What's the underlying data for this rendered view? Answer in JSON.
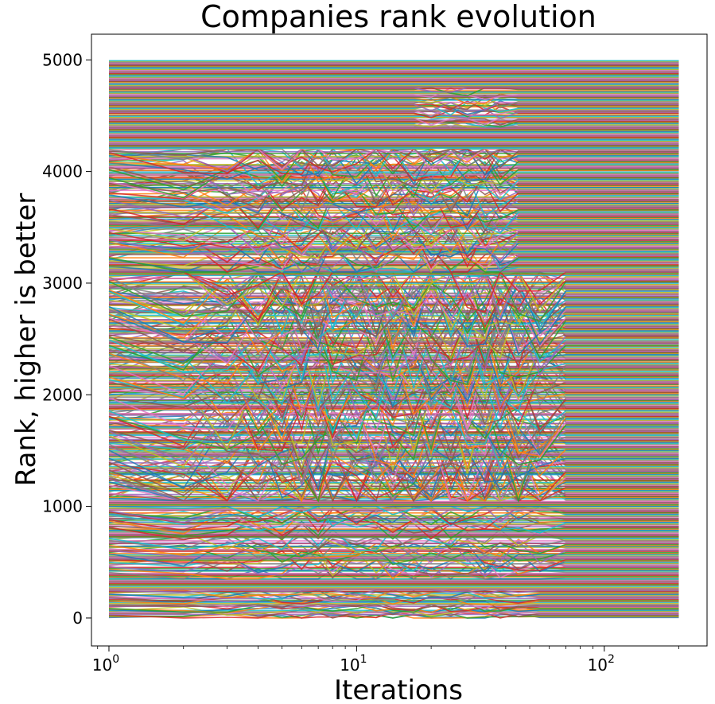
{
  "chart_data": {
    "type": "line",
    "title": "Companies rank evolution",
    "xlabel": "Iterations",
    "ylabel": "Rank, higher is better",
    "x_scale": "log",
    "xlim": [
      0.85,
      260
    ],
    "ylim": [
      -250,
      5230
    ],
    "x_data_range": [
      1,
      200
    ],
    "num_companies": 5000,
    "grid": false,
    "legend": "none",
    "x_ticks": [
      {
        "value": 1,
        "base": "10",
        "exp": "0"
      },
      {
        "value": 10,
        "base": "10",
        "exp": "1"
      },
      {
        "value": 100,
        "base": "10",
        "exp": "2"
      }
    ],
    "y_ticks": [
      {
        "value": 0,
        "label": "0"
      },
      {
        "value": 1000,
        "label": "1000"
      },
      {
        "value": 2000,
        "label": "2000"
      },
      {
        "value": 3000,
        "label": "3000"
      },
      {
        "value": 4000,
        "label": "4000"
      },
      {
        "value": 5000,
        "label": "5000"
      }
    ],
    "color_cycle": [
      "#1f77b4",
      "#ff7f0e",
      "#2ca02c",
      "#d62728",
      "#9467bd",
      "#8c564b",
      "#e377c2",
      "#7f7f7f",
      "#bcbd22",
      "#17becf"
    ],
    "rank_shuffle_regions": [
      {
        "rank_from": 0,
        "rank_to": 250,
        "iteration_from": 2,
        "iteration_to": 55
      },
      {
        "rank_from": 350,
        "rank_to": 1000,
        "iteration_from": 2,
        "iteration_to": 70
      },
      {
        "rank_from": 1050,
        "rank_to": 3100,
        "iteration_from": 2,
        "iteration_to": 70
      },
      {
        "rank_from": 3100,
        "rank_to": 4200,
        "iteration_from": 2,
        "iteration_to": 45
      },
      {
        "rank_from": 4400,
        "rank_to": 4750,
        "iteration_from": 20,
        "iteration_to": 40
      }
    ]
  }
}
